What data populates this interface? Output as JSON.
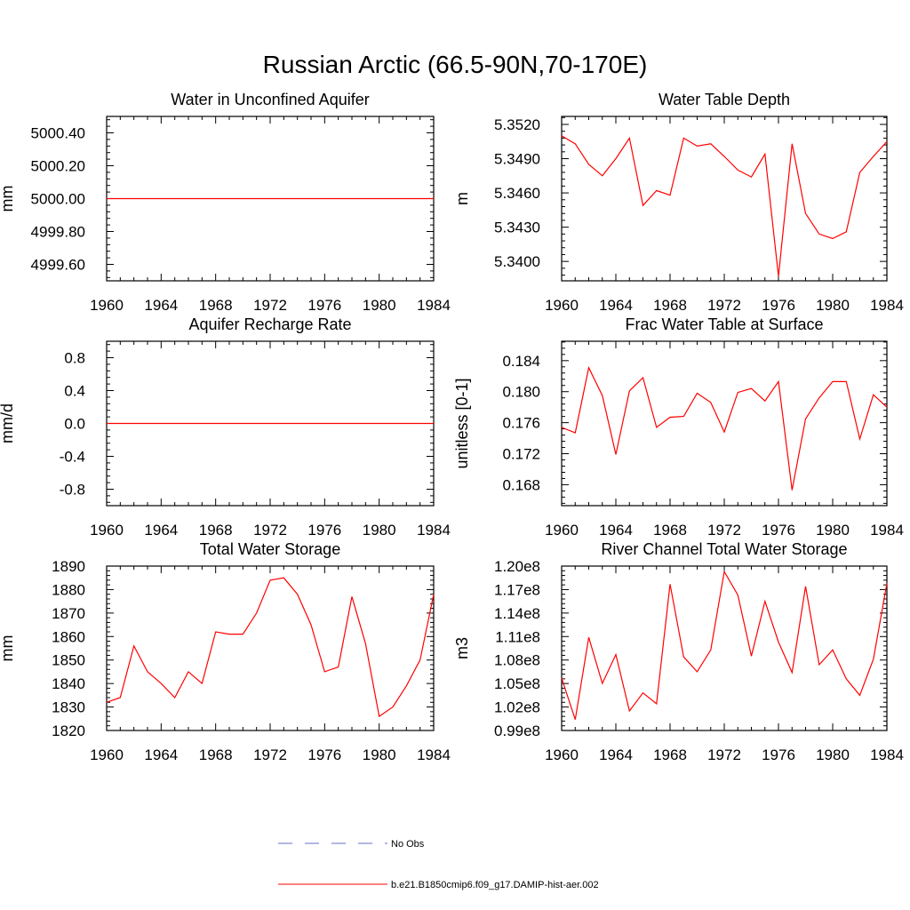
{
  "figure": {
    "title": "Russian Arctic (66.5-90N,70-170E)"
  },
  "legend": {
    "entries": [
      {
        "label": "No Obs",
        "color": "#6070c8",
        "dash": true
      },
      {
        "label": "b.e21.B1850cmip6.f09_g17.DAMIP-hist-aer.002",
        "color": "#ff0000",
        "dash": false
      }
    ]
  },
  "chart_data": [
    {
      "type": "line",
      "title": "Water in Unconfined Aquifer",
      "ylabel": "mm",
      "xlim": [
        1960,
        1984
      ],
      "ylim": [
        4999.5,
        5000.5
      ],
      "xticks": [
        1960,
        1964,
        1968,
        1972,
        1976,
        1980,
        1984
      ],
      "xtick_labels": [
        "1960",
        "1964",
        "1968",
        "1972",
        "1976",
        "1980",
        "1984"
      ],
      "yticks": [
        4999.6,
        4999.8,
        5000.0,
        5000.2,
        5000.4
      ],
      "ytick_labels": [
        "4999.60",
        "4999.80",
        "5000.00",
        "5000.20",
        "5000.40"
      ],
      "x": [
        1960,
        1961,
        1962,
        1963,
        1964,
        1965,
        1966,
        1967,
        1968,
        1969,
        1970,
        1971,
        1972,
        1973,
        1974,
        1975,
        1976,
        1977,
        1978,
        1979,
        1980,
        1981,
        1982,
        1983,
        1984
      ],
      "series": [
        {
          "values": [
            5000,
            5000,
            5000,
            5000,
            5000,
            5000,
            5000,
            5000,
            5000,
            5000,
            5000,
            5000,
            5000,
            5000,
            5000,
            5000,
            5000,
            5000,
            5000,
            5000,
            5000,
            5000,
            5000,
            5000,
            5000
          ],
          "color": "#ff0000"
        }
      ]
    },
    {
      "type": "line",
      "title": "Water Table Depth",
      "ylabel": "m",
      "xlim": [
        1960,
        1984
      ],
      "ylim": [
        5.3383,
        5.3527
      ],
      "xticks": [
        1960,
        1964,
        1968,
        1972,
        1976,
        1980,
        1984
      ],
      "xtick_labels": [
        "1960",
        "1964",
        "1968",
        "1972",
        "1976",
        "1980",
        "1984"
      ],
      "yticks": [
        5.34,
        5.343,
        5.346,
        5.349,
        5.352
      ],
      "ytick_labels": [
        "5.3400",
        "5.3430",
        "5.3460",
        "5.3490",
        "5.3520"
      ],
      "x": [
        1960,
        1961,
        1962,
        1963,
        1964,
        1965,
        1966,
        1967,
        1968,
        1969,
        1970,
        1971,
        1972,
        1973,
        1974,
        1975,
        1976,
        1977,
        1978,
        1979,
        1980,
        1981,
        1982,
        1983,
        1984
      ],
      "series": [
        {
          "values": [
            5.351,
            5.3503,
            5.3485,
            5.3475,
            5.349,
            5.3508,
            5.3449,
            5.3462,
            5.3458,
            5.3508,
            5.3501,
            5.3503,
            5.3492,
            5.348,
            5.3474,
            5.3494,
            5.3387,
            5.3503,
            5.3442,
            5.3424,
            5.342,
            5.3426,
            5.3478,
            5.3492,
            5.3505
          ],
          "color": "#ff0000"
        }
      ]
    },
    {
      "type": "line",
      "title": "Aquifer Recharge Rate",
      "ylabel": "mm/d",
      "xlim": [
        1960,
        1984
      ],
      "ylim": [
        -1.0,
        1.0
      ],
      "xticks": [
        1960,
        1964,
        1968,
        1972,
        1976,
        1980,
        1984
      ],
      "xtick_labels": [
        "1960",
        "1964",
        "1968",
        "1972",
        "1976",
        "1980",
        "1984"
      ],
      "yticks": [
        -0.8,
        -0.4,
        0.0,
        0.4,
        0.8
      ],
      "ytick_labels": [
        "-0.8",
        "-0.4",
        "0.0",
        "0.4",
        "0.8"
      ],
      "x": [
        1960,
        1961,
        1962,
        1963,
        1964,
        1965,
        1966,
        1967,
        1968,
        1969,
        1970,
        1971,
        1972,
        1973,
        1974,
        1975,
        1976,
        1977,
        1978,
        1979,
        1980,
        1981,
        1982,
        1983,
        1984
      ],
      "series": [
        {
          "values": [
            0,
            0,
            0,
            0,
            0,
            0,
            0,
            0,
            0,
            0,
            0,
            0,
            0,
            0,
            0,
            0,
            0,
            0,
            0,
            0,
            0,
            0,
            0,
            0,
            0
          ],
          "color": "#ff0000"
        }
      ]
    },
    {
      "type": "line",
      "title": "Frac Water Table at Surface",
      "ylabel": "unitless [0-1]",
      "xlim": [
        1960,
        1984
      ],
      "ylim": [
        0.1653,
        0.1865
      ],
      "xticks": [
        1960,
        1964,
        1968,
        1972,
        1976,
        1980,
        1984
      ],
      "xtick_labels": [
        "1960",
        "1964",
        "1968",
        "1972",
        "1976",
        "1980",
        "1984"
      ],
      "yticks": [
        0.168,
        0.172,
        0.176,
        0.18,
        0.184
      ],
      "ytick_labels": [
        "0.168",
        "0.172",
        "0.176",
        "0.180",
        "0.184"
      ],
      "x": [
        1960,
        1961,
        1962,
        1963,
        1964,
        1965,
        1966,
        1967,
        1968,
        1969,
        1970,
        1971,
        1972,
        1973,
        1974,
        1975,
        1976,
        1977,
        1978,
        1979,
        1980,
        1981,
        1982,
        1983,
        1984
      ],
      "series": [
        {
          "values": [
            0.1754,
            0.1747,
            0.1831,
            0.1795,
            0.1719,
            0.1801,
            0.1818,
            0.1754,
            0.1767,
            0.1768,
            0.1798,
            0.1786,
            0.1748,
            0.1799,
            0.1804,
            0.1788,
            0.1813,
            0.1673,
            0.1765,
            0.1792,
            0.1813,
            0.1813,
            0.1739,
            0.1796,
            0.178
          ],
          "color": "#ff0000"
        }
      ]
    },
    {
      "type": "line",
      "title": "Total Water Storage",
      "ylabel": "mm",
      "xlim": [
        1960,
        1984
      ],
      "ylim": [
        1820,
        1890
      ],
      "xticks": [
        1960,
        1964,
        1968,
        1972,
        1976,
        1980,
        1984
      ],
      "xtick_labels": [
        "1960",
        "1964",
        "1968",
        "1972",
        "1976",
        "1980",
        "1984"
      ],
      "yticks": [
        1820,
        1830,
        1840,
        1850,
        1860,
        1870,
        1880,
        1890
      ],
      "ytick_labels": [
        "1820",
        "1830",
        "1840",
        "1850",
        "1860",
        "1870",
        "1880",
        "1890"
      ],
      "x": [
        1960,
        1961,
        1962,
        1963,
        1964,
        1965,
        1966,
        1967,
        1968,
        1969,
        1970,
        1971,
        1972,
        1973,
        1974,
        1975,
        1976,
        1977,
        1978,
        1979,
        1980,
        1981,
        1982,
        1983,
        1984
      ],
      "series": [
        {
          "values": [
            1832,
            1834,
            1856,
            1845,
            1840,
            1834,
            1845,
            1840,
            1862,
            1861,
            1861,
            1870,
            1884,
            1885,
            1878,
            1865,
            1845,
            1847,
            1877,
            1857,
            1826,
            1830,
            1839,
            1850,
            1878
          ],
          "color": "#ff0000"
        }
      ]
    },
    {
      "type": "line",
      "title": "River Channel Total Water Storage",
      "ylabel": "m3",
      "xlim": [
        1960,
        1984
      ],
      "ylim": [
        99000000.0,
        120000000.0
      ],
      "xticks": [
        1960,
        1964,
        1968,
        1972,
        1976,
        1980,
        1984
      ],
      "xtick_labels": [
        "1960",
        "1964",
        "1968",
        "1972",
        "1976",
        "1980",
        "1984"
      ],
      "yticks": [
        99000000.0,
        102000000.0,
        105000000.0,
        108000000.0,
        111000000.0,
        114000000.0,
        117000000.0,
        120000000.0
      ],
      "ytick_labels": [
        "0.99e8",
        "1.02e8",
        "1.05e8",
        "1.08e8",
        "1.11e8",
        "1.14e8",
        "1.17e8",
        "1.20e8"
      ],
      "x": [
        1960,
        1961,
        1962,
        1963,
        1964,
        1965,
        1966,
        1967,
        1968,
        1969,
        1970,
        1971,
        1972,
        1973,
        1974,
        1975,
        1976,
        1977,
        1978,
        1979,
        1980,
        1981,
        1982,
        1983,
        1984
      ],
      "series": [
        {
          "values": [
            105700000.0,
            100400000.0,
            110900000.0,
            105000000.0,
            108700000.0,
            101500000.0,
            103800000.0,
            102400000.0,
            117700000.0,
            108400000.0,
            106500000.0,
            109300000.0,
            119300000.0,
            116300000.0,
            108500000.0,
            115500000.0,
            110300000.0,
            106400000.0,
            117400000.0,
            107400000.0,
            109300000.0,
            105600000.0,
            103500000.0,
            108100000.0,
            117800000.0
          ],
          "color": "#ff0000"
        }
      ]
    }
  ]
}
